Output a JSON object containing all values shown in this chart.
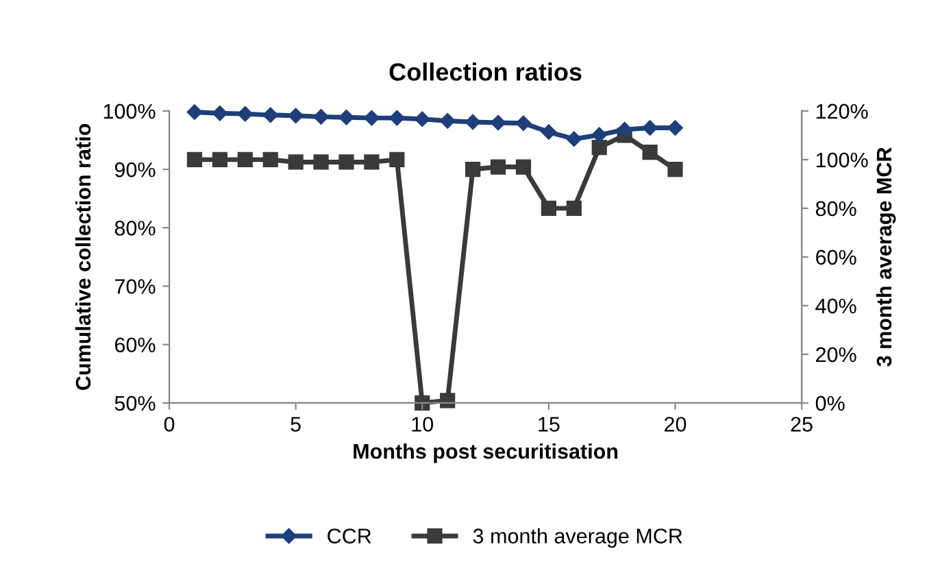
{
  "chart_data": {
    "type": "line",
    "title": "Collection ratios",
    "xlabel": "Months post securitisation",
    "ylabel": "Cumulative collection ratio",
    "y2label": "3 month average MCR",
    "x": [
      1,
      2,
      3,
      4,
      5,
      6,
      7,
      8,
      9,
      10,
      11,
      12,
      13,
      14,
      15,
      16,
      17,
      18,
      19,
      20
    ],
    "series": [
      {
        "name": "CCR",
        "color": "#1f3f7a",
        "marker": "diamond",
        "values": [
          99.8,
          99.6,
          99.5,
          99.3,
          99.2,
          99.0,
          98.9,
          98.8,
          98.8,
          98.6,
          98.3,
          98.1,
          98.0,
          97.9,
          96.4,
          95.2,
          95.9,
          96.8,
          97.1,
          97.1
        ]
      },
      {
        "name": "3 month average MCR",
        "color": "#3a3a3a",
        "marker": "square",
        "axis": "y2",
        "values": [
          100,
          100,
          100,
          100,
          99,
          99,
          99,
          99,
          100,
          0,
          1,
          96,
          97,
          97,
          80,
          80,
          105,
          110,
          103,
          96
        ]
      }
    ],
    "xlim": [
      0,
      25
    ],
    "xticks": [
      0,
      5,
      10,
      15,
      20,
      25
    ],
    "ylim": [
      50,
      100
    ],
    "yticks": [
      {
        "value": 50,
        "label": "50%"
      },
      {
        "value": 60,
        "label": "60%"
      },
      {
        "value": 70,
        "label": "70%"
      },
      {
        "value": 80,
        "label": "80%"
      },
      {
        "value": 90,
        "label": "90%"
      },
      {
        "value": 100,
        "label": "100%"
      }
    ],
    "y2lim": [
      0,
      120
    ],
    "y2ticks": [
      {
        "value": 0,
        "label": "0%"
      },
      {
        "value": 20,
        "label": "20%"
      },
      {
        "value": 40,
        "label": "40%"
      },
      {
        "value": 60,
        "label": "60%"
      },
      {
        "value": 80,
        "label": "80%"
      },
      {
        "value": 100,
        "label": "100%"
      },
      {
        "value": 120,
        "label": "120%"
      }
    ],
    "grid": false,
    "legend": "bottom"
  }
}
